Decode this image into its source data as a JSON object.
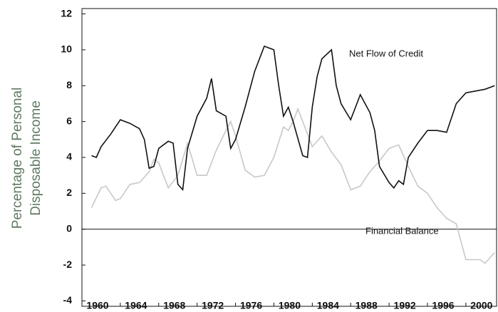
{
  "chart_data": {
    "type": "line",
    "ylabel": [
      "Percentage of Personal",
      "Disposable Income"
    ],
    "annotations": [
      "Net Flow of Credit",
      "Financial Balance"
    ],
    "series": [
      {
        "name": "Net Flow of Credit",
        "color": "#111111",
        "x": [
          1961,
          1961.5,
          1962,
          1963,
          1964,
          1965,
          1966,
          1966.5,
          1967,
          1967.5,
          1968,
          1969,
          1969.5,
          1970,
          1970.5,
          1971,
          1972,
          1973,
          1973.5,
          1974,
          1975,
          1975.5,
          1976,
          1977,
          1978,
          1979,
          1980,
          1980.5,
          1981,
          1981.5,
          1982,
          1983,
          1983.5,
          1984,
          1984.5,
          1985,
          1986,
          1986.5,
          1987,
          1988,
          1988.5,
          1989,
          1990,
          1990.5,
          1991,
          1992,
          1992.5,
          1993,
          1993.5,
          1994,
          1995,
          1996,
          1997,
          1998,
          1999,
          2000,
          2001,
          2002,
          2003
        ],
        "values": [
          4.1,
          4.0,
          4.6,
          5.3,
          6.1,
          5.9,
          5.6,
          5.0,
          3.4,
          3.5,
          4.5,
          4.9,
          4.8,
          2.5,
          2.2,
          4.5,
          6.3,
          7.3,
          8.4,
          6.6,
          6.3,
          4.5,
          5.0,
          6.8,
          8.8,
          10.2,
          10.0,
          8.0,
          6.3,
          6.8,
          6.0,
          4.1,
          4.0,
          6.8,
          8.5,
          9.5,
          10.0,
          8.0,
          7.0,
          6.1,
          6.8,
          7.5,
          6.5,
          5.5,
          3.5,
          2.6,
          2.3,
          2.7,
          2.5,
          4.0,
          4.8,
          5.5,
          5.5,
          5.4,
          7.0,
          7.6,
          7.7,
          7.8,
          8.0
        ]
      },
      {
        "name": "Financial Balance",
        "color": "#c8c8c4",
        "x": [
          1961,
          1962,
          1962.5,
          1963.5,
          1964,
          1965,
          1966,
          1967,
          1967.5,
          1968,
          1969,
          1970,
          1971,
          1972,
          1973,
          1974,
          1975,
          1975.5,
          1976,
          1977,
          1978,
          1979,
          1980,
          1981,
          1981.5,
          1982,
          1982.5,
          1983,
          1984,
          1985,
          1986,
          1987,
          1988,
          1989,
          1990,
          1991,
          1992,
          1993,
          1994,
          1995,
          1996,
          1997,
          1998,
          1999,
          2000,
          2001,
          2001.5,
          2002,
          2003
        ],
        "values": [
          1.2,
          2.3,
          2.4,
          1.6,
          1.7,
          2.5,
          2.6,
          3.2,
          3.9,
          3.7,
          2.3,
          3.0,
          4.8,
          3.0,
          3.0,
          4.4,
          5.5,
          6.0,
          5.2,
          3.3,
          2.9,
          3.0,
          4.0,
          5.7,
          5.5,
          6.0,
          6.7,
          6.0,
          4.6,
          5.2,
          4.3,
          3.6,
          2.2,
          2.4,
          3.2,
          3.8,
          4.5,
          4.7,
          3.5,
          2.4,
          2.0,
          1.2,
          0.6,
          0.3,
          -1.7,
          -1.7,
          -1.7,
          -1.9,
          -1.3
        ]
      }
    ],
    "xlim": [
      1960,
      2003.2
    ],
    "xticks": [
      1960,
      1964,
      1968,
      1972,
      1976,
      1980,
      1984,
      1988,
      1992,
      1996,
      2000
    ],
    "ylim": [
      -4.3,
      12.3
    ],
    "yticks": [
      -4,
      -2,
      0,
      2,
      4,
      6,
      8,
      10,
      12
    ],
    "zero_line": true
  }
}
